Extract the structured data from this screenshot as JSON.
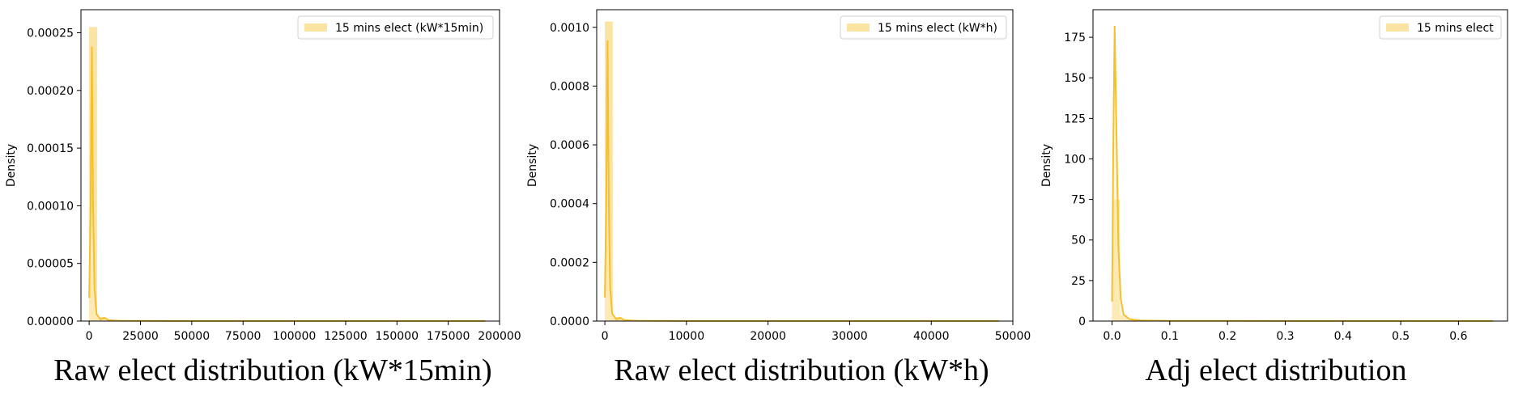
{
  "chart_data": [
    {
      "type": "histogram",
      "title": "Raw elect distribution (kW*15min)",
      "xlabel": "",
      "ylabel": "Density",
      "xlim": [
        -4000,
        200000
      ],
      "ylim": [
        0,
        0.00027
      ],
      "x_ticks": [
        0,
        25000,
        50000,
        75000,
        100000,
        125000,
        150000,
        175000,
        200000
      ],
      "x_tick_labels": [
        "0",
        "25000",
        "50000",
        "75000",
        "100000",
        "125000",
        "150000",
        "175000",
        "200000"
      ],
      "y_ticks": [
        0,
        5e-05,
        0.0001,
        0.00015,
        0.0002,
        0.00025
      ],
      "y_tick_labels": [
        "0.00000",
        "0.00005",
        "0.00010",
        "0.00015",
        "0.00020",
        "0.00025"
      ],
      "legend": {
        "label": "15 mins elect (kW*15min)",
        "position": "upper right"
      },
      "grid": false,
      "series": [
        {
          "name": "15 mins elect (kW*15min)",
          "bins": [
            {
              "x0": 0,
              "x1": 3860,
              "density": 0.000255
            },
            {
              "x0": 3860,
              "x1": 7720,
              "density": 3.5e-06
            },
            {
              "x0": 7720,
              "x1": 11580,
              "density": 1.5e-06
            }
          ],
          "kde": [
            [
              0,
              2e-05
            ],
            [
              700,
              0.0001
            ],
            [
              1300,
              0.000238
            ],
            [
              1900,
              0.0001
            ],
            [
              2600,
              2.8e-05
            ],
            [
              3600,
              6e-06
            ],
            [
              5500,
              1.5e-06
            ],
            [
              7500,
              2.8e-06
            ],
            [
              9500,
              8e-07
            ],
            [
              15000,
              3e-07
            ],
            [
              40000,
              1e-07
            ],
            [
              100000,
              5e-08
            ],
            [
              193000,
              5e-08
            ]
          ]
        }
      ]
    },
    {
      "type": "histogram",
      "title": "Raw elect distribution (kW*h)",
      "xlabel": "",
      "ylabel": "Density",
      "xlim": [
        -1000,
        50000
      ],
      "ylim": [
        0,
        0.00106
      ],
      "x_ticks": [
        0,
        10000,
        20000,
        30000,
        40000,
        50000
      ],
      "x_tick_labels": [
        "0",
        "10000",
        "20000",
        "30000",
        "40000",
        "50000"
      ],
      "y_ticks": [
        0,
        0.0002,
        0.0004,
        0.0006,
        0.0008,
        0.001
      ],
      "y_tick_labels": [
        "0.0000",
        "0.0002",
        "0.0004",
        "0.0006",
        "0.0008",
        "0.0010"
      ],
      "legend": {
        "label": "15 mins elect (kW*h)",
        "position": "upper right"
      },
      "grid": false,
      "series": [
        {
          "name": "15 mins elect (kW*h)",
          "bins": [
            {
              "x0": 0,
              "x1": 965,
              "density": 0.00102
            },
            {
              "x0": 965,
              "x1": 1930,
              "density": 1.4e-05
            },
            {
              "x0": 1930,
              "x1": 2895,
              "density": 6e-06
            }
          ],
          "kde": [
            [
              0,
              8e-05
            ],
            [
              170,
              0.0004
            ],
            [
              330,
              0.000955
            ],
            [
              480,
              0.0004
            ],
            [
              650,
              0.00011
            ],
            [
              900,
              2.5e-05
            ],
            [
              1400,
              6e-06
            ],
            [
              1900,
              1.1e-05
            ],
            [
              2400,
              3e-06
            ],
            [
              4000,
              1.2e-06
            ],
            [
              10000,
              4e-07
            ],
            [
              25000,
              2e-07
            ],
            [
              48300,
              2e-07
            ]
          ]
        }
      ]
    },
    {
      "type": "histogram",
      "title": "Adj elect distribution",
      "xlabel": "",
      "ylabel": "Density",
      "xlim": [
        -0.033,
        0.685
      ],
      "ylim": [
        0,
        192
      ],
      "x_ticks": [
        0,
        0.1,
        0.2,
        0.3,
        0.4,
        0.5,
        0.6
      ],
      "x_tick_labels": [
        "0.0",
        "0.1",
        "0.2",
        "0.3",
        "0.4",
        "0.5",
        "0.6"
      ],
      "y_ticks": [
        0,
        25,
        50,
        75,
        100,
        125,
        150,
        175
      ],
      "y_tick_labels": [
        "0",
        "25",
        "50",
        "75",
        "100",
        "125",
        "150",
        "175"
      ],
      "legend": {
        "label": "15 mins elect",
        "position": "upper right"
      },
      "grid": false,
      "series": [
        {
          "name": "15 mins elect",
          "bins": [
            {
              "x0": 0,
              "x1": 0.0132,
              "density": 75
            },
            {
              "x0": 0.0132,
              "x1": 0.0264,
              "density": 3.5
            },
            {
              "x0": 0.0264,
              "x1": 0.0396,
              "density": 0.8
            }
          ],
          "kde": [
            [
              0,
              12
            ],
            [
              0.0022,
              110
            ],
            [
              0.0045,
              182
            ],
            [
              0.0075,
              120
            ],
            [
              0.011,
              45
            ],
            [
              0.015,
              14
            ],
            [
              0.02,
              4
            ],
            [
              0.03,
              1.2
            ],
            [
              0.05,
              0.4
            ],
            [
              0.1,
              0.15
            ],
            [
              0.3,
              0.05
            ],
            [
              0.66,
              0.05
            ]
          ]
        }
      ]
    }
  ],
  "colors": {
    "bar_fill": "#fbe3a2",
    "kde_line": "#f5c02a",
    "kde_fill": "#fdefc4",
    "axes": "#000000",
    "legend_border": "#d0d0d0"
  }
}
